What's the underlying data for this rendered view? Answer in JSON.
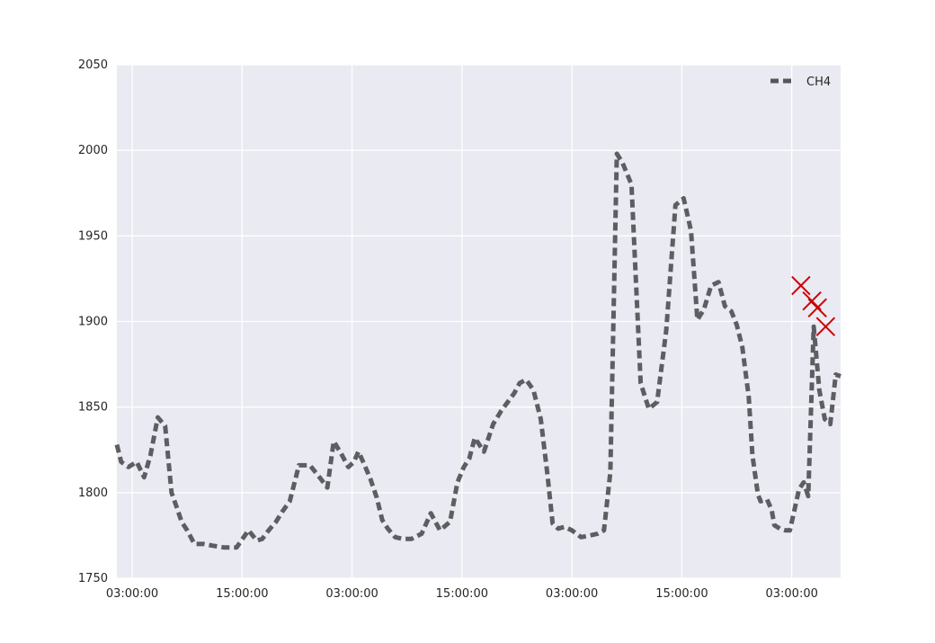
{
  "chart_data": {
    "type": "line",
    "title": "",
    "xlabel": "",
    "ylabel": "",
    "ylim": [
      1750,
      2050
    ],
    "yticks": [
      1750,
      1800,
      1850,
      1900,
      1950,
      2000,
      2050
    ],
    "xlim": [
      -1.67,
      77.33
    ],
    "xticks": [
      {
        "hour": 0,
        "label": "03:00:00"
      },
      {
        "hour": 12,
        "label": "15:00:00"
      },
      {
        "hour": 24,
        "label": "03:00:00"
      },
      {
        "hour": 36,
        "label": "15:00:00"
      },
      {
        "hour": 48,
        "label": "03:00:00"
      },
      {
        "hour": 60,
        "label": "15:00:00"
      },
      {
        "hour": 72,
        "label": "03:00:00"
      },
      {
        "hour": 84,
        "label": "15:00:00"
      }
    ],
    "grid": true,
    "legend_position": "top-right",
    "background": "#EAEAF2",
    "series": [
      {
        "name": "CH4",
        "style": "dashed",
        "color": "#55555A",
        "x": [
          -1.67,
          -1.2,
          -0.4,
          0.5,
          1.3,
          2.0,
          2.8,
          3.6,
          4.3,
          4.9,
          5.4,
          6.0,
          6.8,
          7.8,
          8.8,
          10.0,
          11.4,
          12.7,
          13.6,
          14.2,
          14.9,
          15.7,
          16.4,
          17.2,
          18.2,
          19.4,
          20.6,
          21.3,
          22.0,
          22.8,
          23.6,
          24.2,
          24.7,
          25.3,
          26.0,
          26.7,
          27.3,
          27.9,
          28.7,
          29.5,
          30.5,
          31.6,
          32.6,
          33.6,
          34.7,
          35.5,
          36.2,
          36.8,
          37.4,
          38.4,
          39.4,
          40.3,
          41.0,
          41.7,
          42.3,
          43.0,
          43.8,
          44.6,
          45.3,
          45.9,
          46.5,
          47.2,
          48.0,
          49.0,
          50.0,
          50.8,
          51.5,
          52.2,
          52.9,
          53.5,
          54.5,
          55.5,
          56.4,
          57.3,
          58.3,
          59.3,
          60.2,
          61.0,
          61.7,
          62.4,
          63.2,
          64.0,
          64.7,
          65.4,
          66.0,
          66.6,
          67.3,
          67.7,
          68.3,
          68.6,
          69.3,
          69.8,
          70.1,
          70.7,
          71.3,
          71.8,
          72.3,
          72.8,
          73.3,
          73.8,
          74.4,
          75.0,
          75.6,
          76.2,
          76.8,
          77.33
        ],
        "values": [
          1828,
          1818,
          1815,
          1818,
          1809,
          1822,
          1844,
          1839,
          1800,
          1791,
          1783,
          1778,
          1770,
          1770,
          1769,
          1768,
          1768,
          1778,
          1772,
          1773,
          1778,
          1783,
          1789,
          1795,
          1816,
          1816,
          1808,
          1803,
          1830,
          1823,
          1815,
          1818,
          1824,
          1817,
          1808,
          1797,
          1784,
          1779,
          1774,
          1773,
          1773,
          1776,
          1788,
          1778,
          1783,
          1806,
          1815,
          1820,
          1832,
          1824,
          1840,
          1848,
          1853,
          1858,
          1864,
          1866,
          1860,
          1843,
          1812,
          1782,
          1779,
          1780,
          1778,
          1774,
          1775,
          1776,
          1778,
          1812,
          1998,
          1993,
          1980,
          1864,
          1849,
          1853,
          1895,
          1968,
          1972,
          1953,
          1901,
          1907,
          1921,
          1923,
          1909,
          1906,
          1898,
          1885,
          1856,
          1822,
          1799,
          1795,
          1796,
          1790,
          1781,
          1779,
          1778,
          1778,
          1790,
          1802,
          1806,
          1798,
          1897,
          1860,
          1843,
          1840,
          1869,
          1868
        ]
      }
    ],
    "markers": {
      "shape": "x",
      "color": "#CC0000",
      "points": [
        {
          "x": 73.0,
          "y": 1921
        },
        {
          "x": 74.2,
          "y": 1912
        },
        {
          "x": 74.8,
          "y": 1908
        },
        {
          "x": 75.7,
          "y": 1897
        }
      ]
    }
  }
}
